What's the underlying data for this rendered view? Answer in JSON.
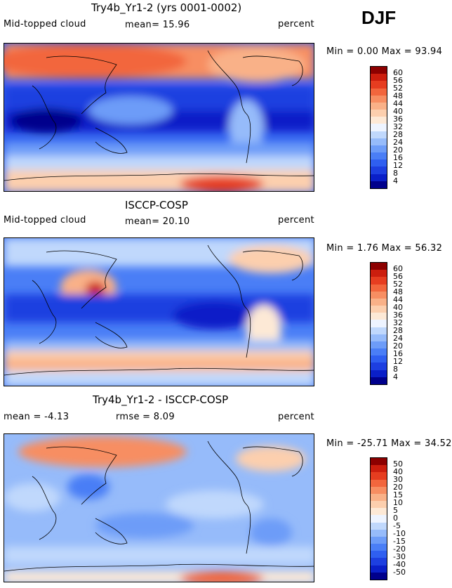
{
  "season": "DJF",
  "palette_main": [
    "#00008c",
    "#0a1fc8",
    "#1d3fe0",
    "#2f5ff0",
    "#4a7ef6",
    "#6d9cf8",
    "#96bbfa",
    "#c0d8fc",
    "#eef4ff",
    "#fde9d6",
    "#fccfae",
    "#f9b188",
    "#f78e62",
    "#f2663d",
    "#e63d20",
    "#cc1e0e",
    "#8c0000"
  ],
  "palette_diff": [
    "#00008c",
    "#0a1fc8",
    "#1d3fe0",
    "#2f5ff0",
    "#4a7ef6",
    "#6d9cf8",
    "#96bbfa",
    "#c0d8fc",
    "#eef4ff",
    "#fde9d6",
    "#fccfae",
    "#f9b188",
    "#f78e62",
    "#f2663d",
    "#e63d20",
    "#cc1e0e",
    "#8c0000"
  ],
  "panels": [
    {
      "title": "Try4b_Yr1-2 (yrs 0001-0002)",
      "left_label": "Mid-topped cloud",
      "center_label": "mean=  15.96",
      "right_label": "percent",
      "minmax": "Min =   0.00 Max =  93.94",
      "ticks": [
        "60",
        "56",
        "52",
        "48",
        "44",
        "40",
        "36",
        "32",
        "28",
        "24",
        "20",
        "16",
        "12",
        "8",
        "4"
      ]
    },
    {
      "title": "ISCCP-COSP",
      "left_label": "Mid-topped cloud",
      "center_label": "mean=  20.10",
      "right_label": "percent",
      "minmax": "Min =   1.76 Max =  56.32",
      "ticks": [
        "60",
        "56",
        "52",
        "48",
        "44",
        "40",
        "36",
        "32",
        "28",
        "24",
        "20",
        "16",
        "12",
        "8",
        "4"
      ]
    },
    {
      "title": "Try4b_Yr1-2 - ISCCP-COSP",
      "left_label": "mean =  -4.13",
      "center_label": "rmse =   8.09",
      "right_label": "percent",
      "minmax": "Min = -25.71 Max =  34.52",
      "ticks": [
        "50",
        "40",
        "30",
        "20",
        "15",
        "10",
        "5",
        "0",
        "-5",
        "-10",
        "-15",
        "-20",
        "-30",
        "-40",
        "-50"
      ]
    }
  ]
}
